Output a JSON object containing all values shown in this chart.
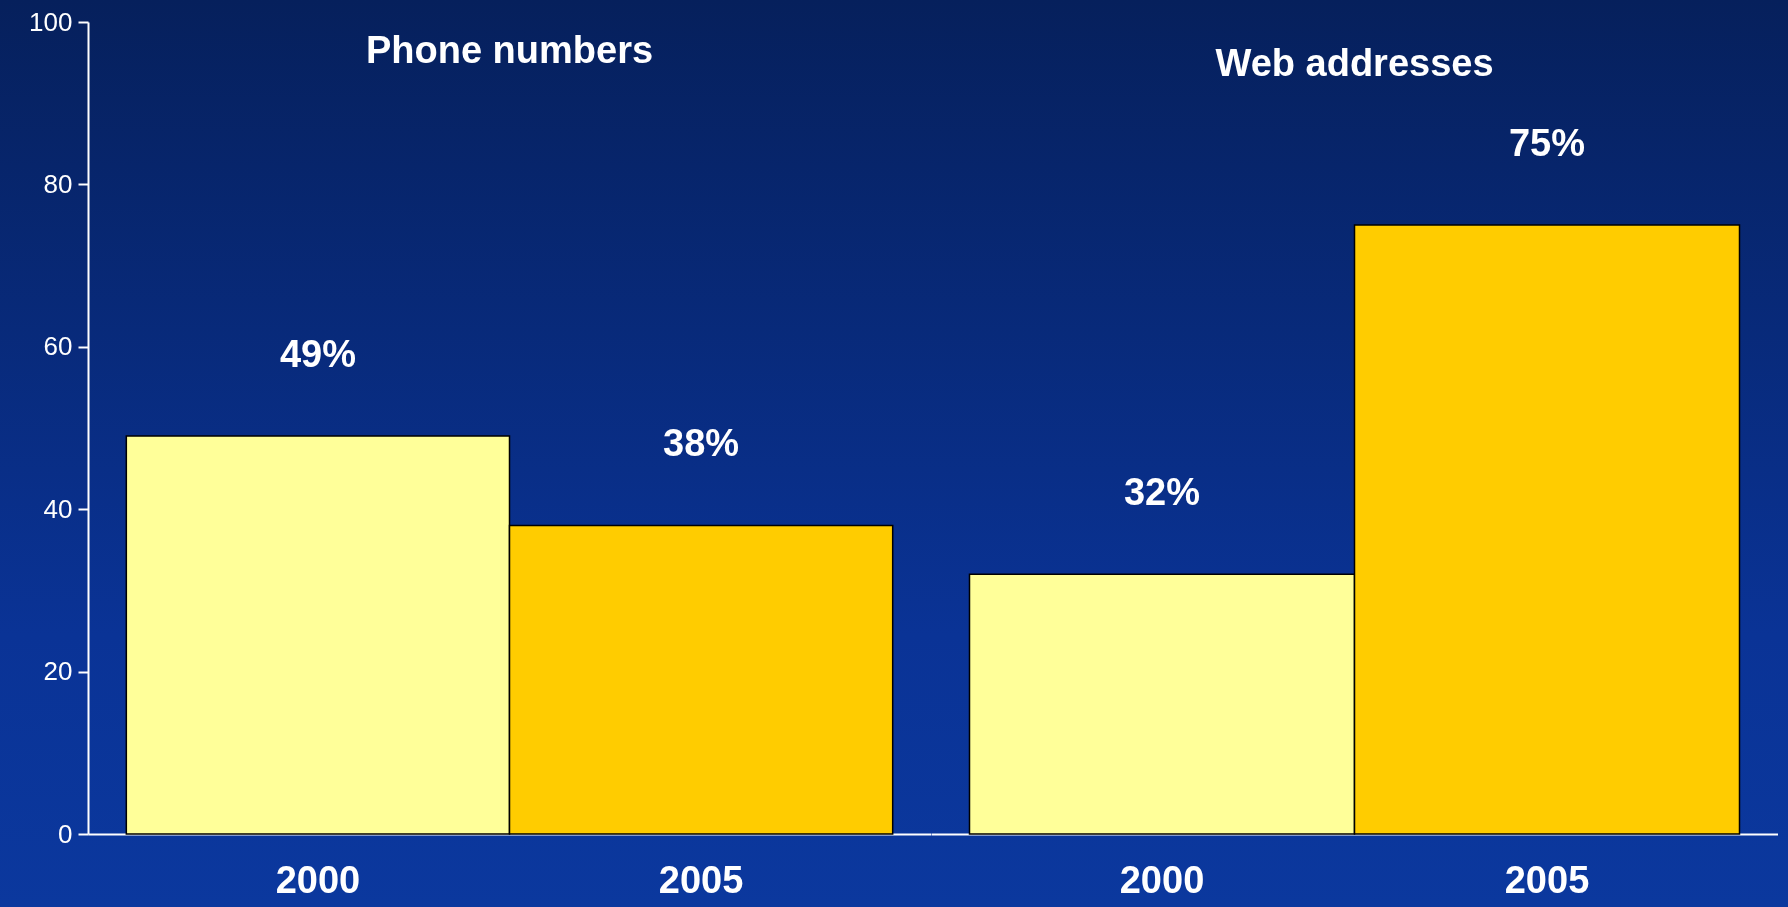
{
  "chart_data": [
    {
      "type": "bar",
      "title": "Phone numbers",
      "categories": [
        "2000",
        "2005"
      ],
      "values": [
        49,
        38
      ],
      "colors": [
        "#ffff99",
        "#ffcc00"
      ],
      "value_labels": [
        "49%",
        "38%"
      ],
      "ylim": [
        0,
        100
      ],
      "yticks": [
        0,
        20,
        40,
        60,
        80,
        100
      ]
    },
    {
      "type": "bar",
      "title": "Web addresses",
      "categories": [
        "2000",
        "2005"
      ],
      "values": [
        32,
        75
      ],
      "colors": [
        "#ffff99",
        "#ffcc00"
      ],
      "value_labels": [
        "32%",
        "75%"
      ],
      "ylim": [
        0,
        100
      ],
      "yticks": [
        0,
        20,
        40,
        60,
        80,
        100
      ],
      "tick_labels": "x"
    }
  ]
}
